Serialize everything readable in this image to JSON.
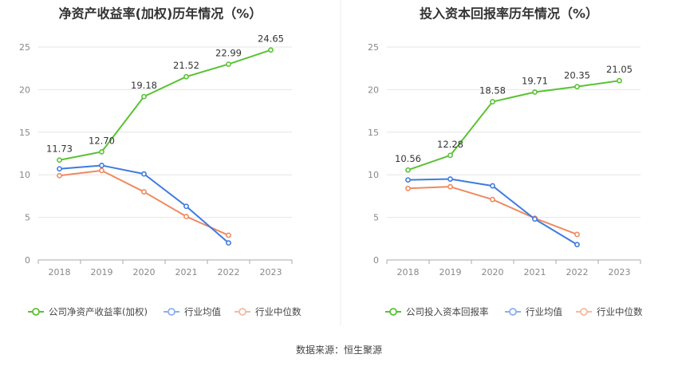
{
  "source": "数据来源：恒生聚源",
  "colors": {
    "company": "#5ac234",
    "avg": "#3f7be0",
    "median": "#ef8a62",
    "grid": "#e6e6e6",
    "axis": "#cccccc"
  },
  "chart_data": [
    {
      "type": "line",
      "title": "净资产收益率(加权)历年情况（%）",
      "categories": [
        "2018",
        "2019",
        "2020",
        "2021",
        "2022",
        "2023"
      ],
      "ylim": [
        0,
        25
      ],
      "yticks": [
        0,
        5,
        10,
        15,
        20,
        25
      ],
      "series": [
        {
          "key": "company",
          "name": "公司净资产收益率(加权)",
          "values": [
            11.73,
            12.7,
            19.18,
            21.52,
            22.99,
            24.65
          ],
          "labels": [
            "11.73",
            "12.70",
            "19.18",
            "21.52",
            "22.99",
            "24.65"
          ]
        },
        {
          "key": "avg",
          "name": "行业均值",
          "values": [
            10.7,
            11.1,
            10.1,
            6.3,
            2.0,
            null
          ]
        },
        {
          "key": "median",
          "name": "行业中位数",
          "values": [
            9.9,
            10.5,
            8.0,
            5.1,
            2.9,
            null
          ]
        }
      ]
    },
    {
      "type": "line",
      "title": "投入资本回报率历年情况（%）",
      "categories": [
        "2018",
        "2019",
        "2020",
        "2021",
        "2022",
        "2023"
      ],
      "ylim": [
        0,
        25
      ],
      "yticks": [
        0,
        5,
        10,
        15,
        20,
        25
      ],
      "series": [
        {
          "key": "company",
          "name": "公司投入资本回报率",
          "values": [
            10.56,
            12.28,
            18.58,
            19.71,
            20.35,
            21.05
          ],
          "labels": [
            "10.56",
            "12.28",
            "18.58",
            "19.71",
            "20.35",
            "21.05"
          ]
        },
        {
          "key": "avg",
          "name": "行业均值",
          "values": [
            9.4,
            9.5,
            8.7,
            4.8,
            1.8,
            null
          ]
        },
        {
          "key": "median",
          "name": "行业中位数",
          "values": [
            8.4,
            8.6,
            7.1,
            4.9,
            3.0,
            null
          ]
        }
      ]
    }
  ]
}
